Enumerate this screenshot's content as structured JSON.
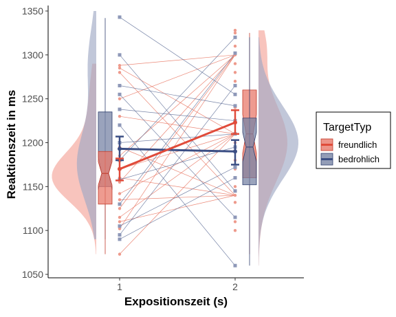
{
  "chart_data": {
    "type": "raincloud",
    "xlabel": "Expositionszeit (s)",
    "ylabel": "Reaktionszeit in ms",
    "ylim": [
      1050,
      1350
    ],
    "yticks": [
      1050,
      1100,
      1150,
      1200,
      1250,
      1300,
      1350
    ],
    "categories": [
      "1",
      "2"
    ],
    "grid": false,
    "legend": {
      "title": "TargetTyp",
      "position": "right",
      "items": [
        {
          "label": "freundlich",
          "color": "#E04B3A"
        },
        {
          "label": "bedrohlich",
          "color": "#3B4E84"
        }
      ]
    },
    "series": [
      {
        "name": "freundlich",
        "color": "#E04B3A",
        "means": [
          1170,
          1223
        ],
        "error_lower": [
          1157,
          1210
        ],
        "error_upper": [
          1182,
          1237
        ],
        "box": [
          {
            "x": "1",
            "min": 1073,
            "q1": 1130,
            "median": 1165,
            "q3": 1190,
            "max": 1190
          },
          {
            "x": "2",
            "min": 1073,
            "q1": 1160,
            "median": 1210,
            "q3": 1260,
            "max": 1325
          }
        ],
        "points_x1": [
          1288,
          1285,
          1280,
          1250,
          1230,
          1195,
          1185,
          1170,
          1160,
          1155,
          1142,
          1135,
          1125,
          1115,
          1110,
          1102,
          1073
        ],
        "points_x2": [
          1328,
          1325,
          1310,
          1300,
          1290,
          1280,
          1270,
          1255,
          1240,
          1225,
          1210,
          1200,
          1190,
          1180,
          1170,
          1160,
          1150,
          1140,
          1132,
          1110,
          1100
        ]
      },
      {
        "name": "bedrohlich",
        "color": "#3B4E84",
        "means": [
          1193,
          1190
        ],
        "error_lower": [
          1180,
          1175
        ],
        "error_upper": [
          1207,
          1203
        ],
        "box": [
          {
            "x": "1",
            "min": 1090,
            "q1": 1150,
            "median": 1165,
            "q3": 1235,
            "max": 1342
          },
          {
            "x": "2",
            "min": 1060,
            "q1": 1152,
            "median": 1195,
            "q3": 1228,
            "max": 1320
          }
        ],
        "points_x1": [
          1343,
          1300,
          1265,
          1255,
          1238,
          1220,
          1200,
          1180,
          1158,
          1130,
          1105,
          1095,
          1090
        ],
        "points_x2": [
          1320,
          1302,
          1265,
          1255,
          1242,
          1225,
          1210,
          1195,
          1172,
          1160,
          1145,
          1115,
          1060
        ]
      }
    ]
  }
}
